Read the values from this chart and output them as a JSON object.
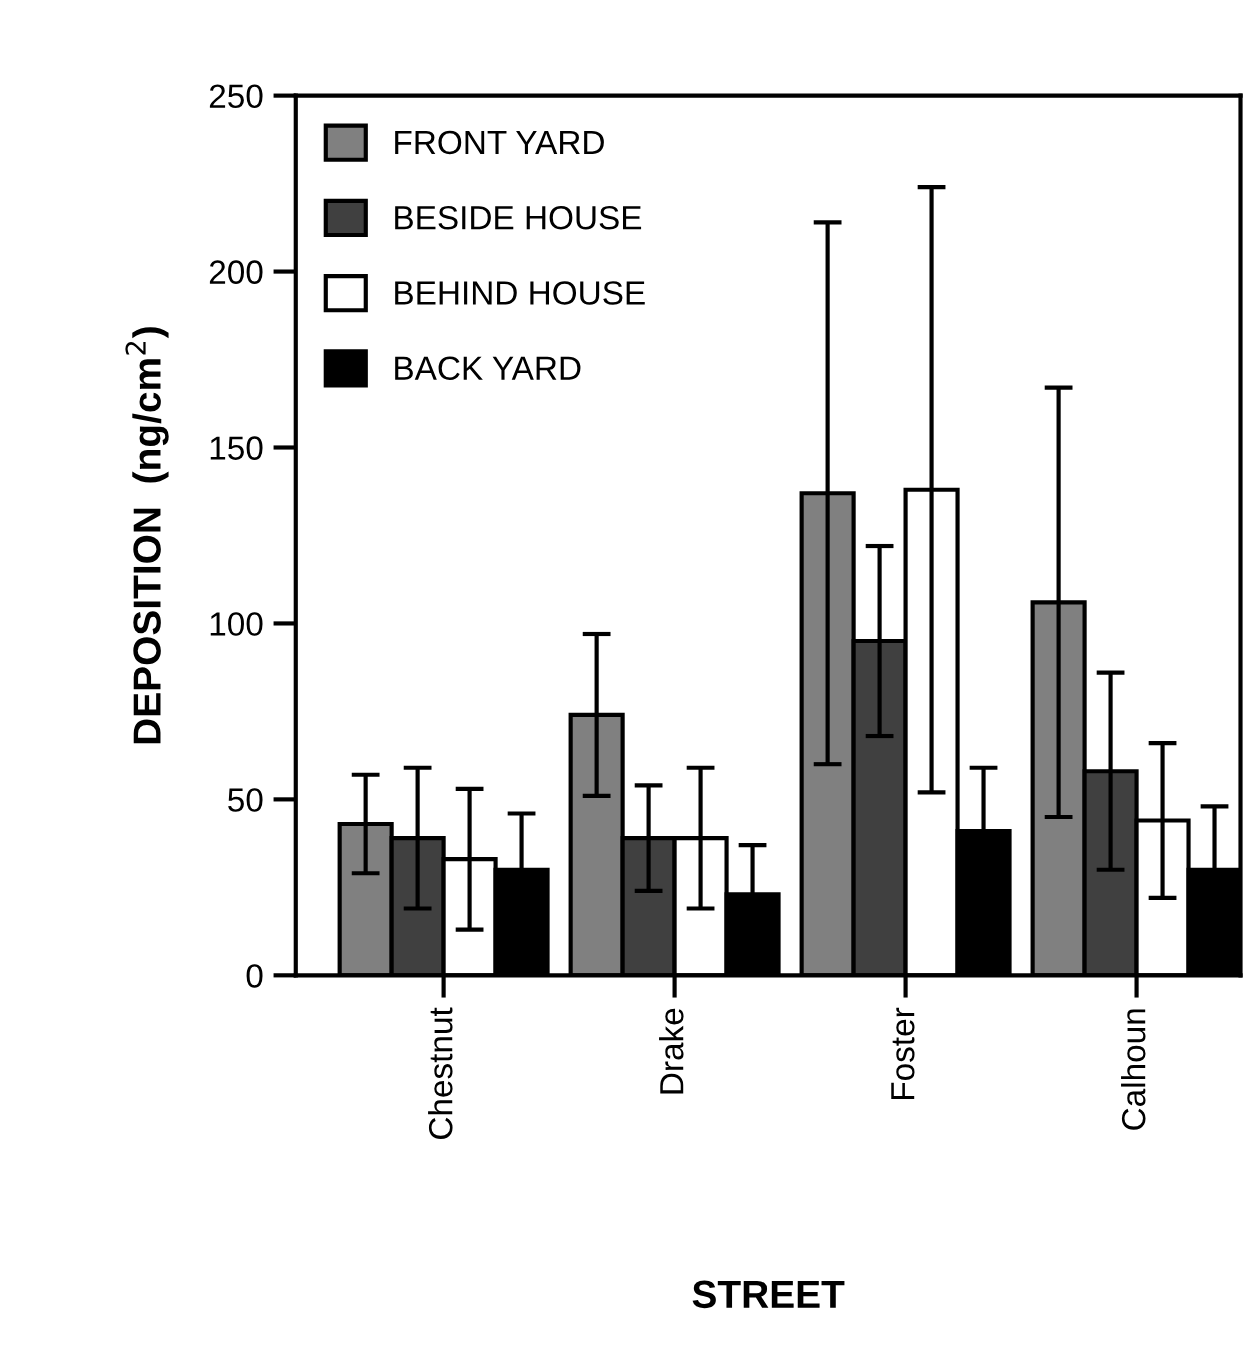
{
  "chart_data": {
    "type": "bar",
    "xlabel": "STREET",
    "ylabel": "DEPOSITION  (ng/cm$^{2}$)",
    "categories": [
      "Chestnut",
      "Drake",
      "Foster",
      "Calhoun"
    ],
    "series": [
      {
        "name": "FRONT YARD",
        "color": "#808080",
        "values": [
          43,
          74,
          137,
          106
        ],
        "errors": [
          14,
          23,
          77,
          61
        ]
      },
      {
        "name": "BESIDE HOUSE",
        "color": "#404040",
        "values": [
          39,
          39,
          95,
          58
        ],
        "errors": [
          20,
          15,
          27,
          28
        ]
      },
      {
        "name": "BEHIND HOUSE",
        "color": "#ffffff",
        "values": [
          33,
          39,
          138,
          44
        ],
        "errors": [
          20,
          20,
          86,
          22
        ]
      },
      {
        "name": "BACK YARD",
        "color": "#000000",
        "values": [
          30,
          23,
          41,
          30
        ],
        "errors": [
          16,
          14,
          18,
          18
        ]
      }
    ],
    "ylim": [
      0,
      250
    ],
    "yticks": [
      0,
      50,
      100,
      150,
      200,
      250
    ],
    "grid": false,
    "legend": "top left"
  }
}
